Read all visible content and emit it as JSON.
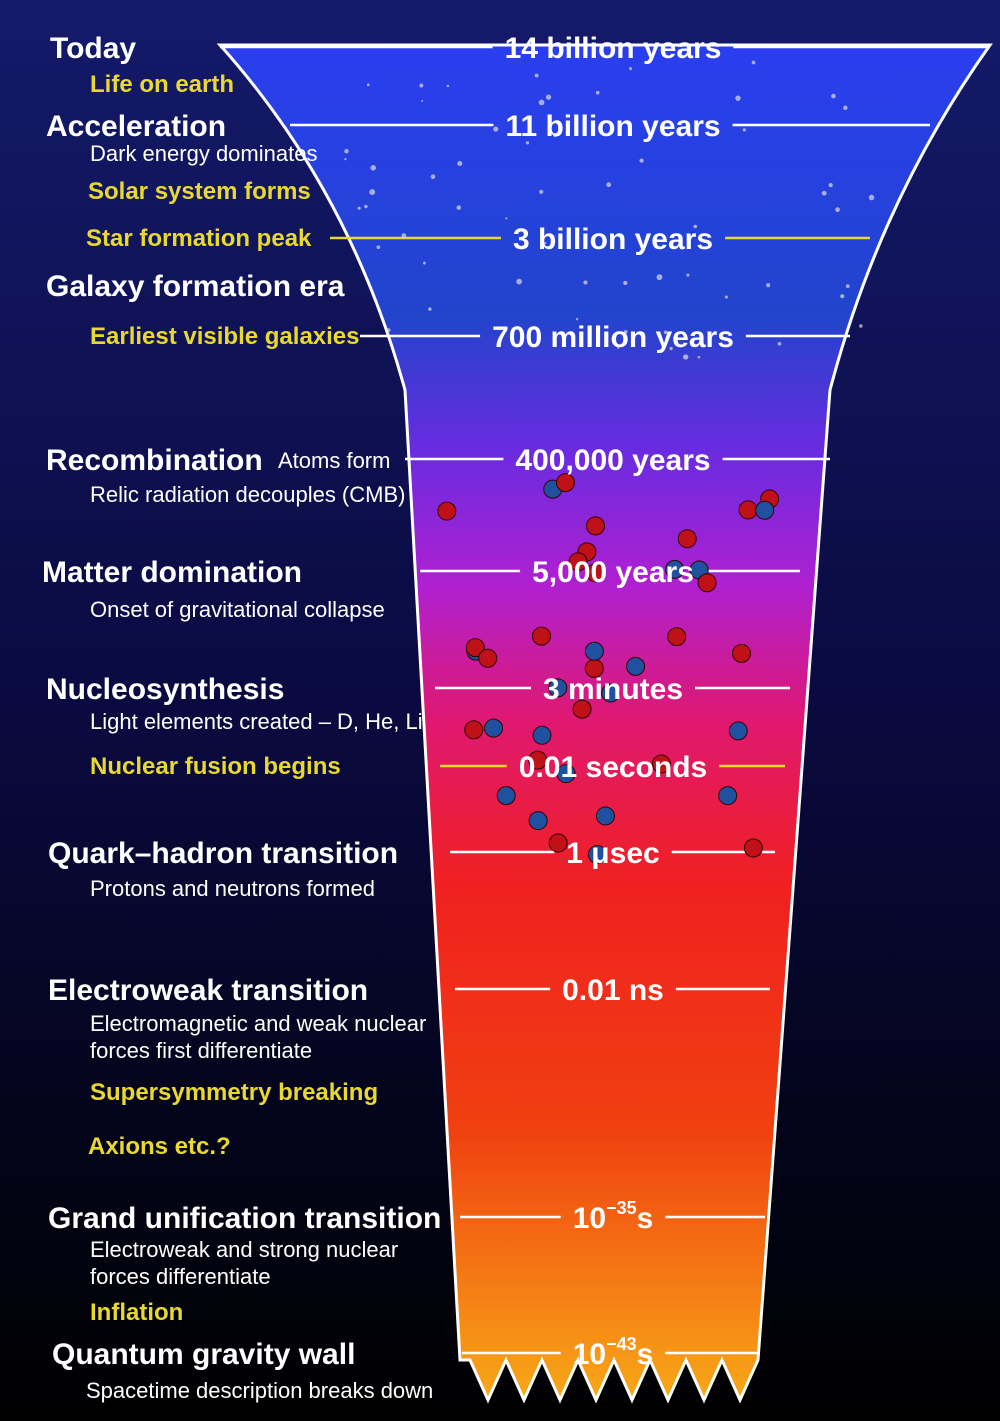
{
  "labels": [
    "Today",
    "Life on earth",
    "Acceleration",
    "Dark energy dominates",
    "Solar system forms",
    "Star formation peak",
    "Galaxy formation era",
    "Earliest visible galaxies",
    "Recombination",
    "Atoms form",
    "Relic radiation decouples (CMB)",
    "Matter domination",
    "Onset of gravitational collapse",
    "Nucleosynthesis",
    "Light elements created – D, He, Li",
    "Nuclear fusion begins",
    "Quark–hadron transition",
    "Protons and neutrons formed",
    "Electroweak transition",
    "Electromagnetic and weak nuclear",
    "forces first differentiate",
    "Supersymmetry breaking",
    "Axions etc.?",
    "Grand unification transition",
    "Electroweak and strong nuclear",
    "forces differentiate",
    "Inflation",
    "Quantum gravity wall",
    "Spacetime description breaks down"
  ],
  "times": [
    {
      "text": "14 billion years"
    },
    {
      "text": "11 billion years"
    },
    {
      "text": "3 billion years",
      "color": "#e8d830"
    },
    {
      "text": "700 million years"
    },
    {
      "text": "400,000 years"
    },
    {
      "text": "5,000 years"
    },
    {
      "text": "3 minutes"
    },
    {
      "text": "0.01 seconds",
      "color": "#e8d830"
    },
    {
      "text": "1 μsec"
    },
    {
      "text": "0.01 ns"
    },
    {
      "base": "10",
      "exponent": "−35",
      "unit": "s"
    },
    {
      "base": "10",
      "exponent": "−43",
      "unit": "s"
    }
  ]
}
